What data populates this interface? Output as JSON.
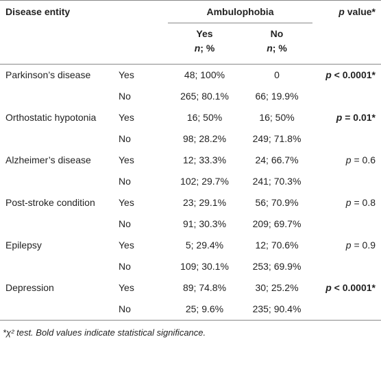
{
  "header": {
    "disease": "Disease entity",
    "group_title": "Ambulophobia",
    "p_title": {
      "var": "p",
      "rest": " value*"
    },
    "yes": "Yes",
    "no": "No",
    "count_label": {
      "var": "n",
      "rest": "; %"
    }
  },
  "table": {
    "rows": [
      {
        "disease": "Parkinson’s disease",
        "group": "Yes",
        "yes": "48; 100%",
        "no": "0",
        "p": {
          "var": "p",
          "rest": " < 0.0001*",
          "bold": true
        }
      },
      {
        "disease": null,
        "group": "No",
        "yes": "265; 80.1%",
        "no": "66; 19.9%",
        "p": null
      },
      {
        "disease": "Orthostatic hypotonia",
        "group": "Yes",
        "yes": "16; 50%",
        "no": "16; 50%",
        "p": {
          "var": "p",
          "rest": " = 0.01*",
          "bold": true
        }
      },
      {
        "disease": null,
        "group": "No",
        "yes": "98; 28.2%",
        "no": "249; 71.8%",
        "p": null
      },
      {
        "disease": "Alzheimer’s disease",
        "group": "Yes",
        "yes": "12; 33.3%",
        "no": "24; 66.7%",
        "p": {
          "var": "p",
          "rest": " = 0.6",
          "bold": false
        }
      },
      {
        "disease": null,
        "group": "No",
        "yes": "102; 29.7%",
        "no": "241; 70.3%",
        "p": null
      },
      {
        "disease": "Post-stroke condition",
        "group": "Yes",
        "yes": "23; 29.1%",
        "no": "56; 70.9%",
        "p": {
          "var": "p",
          "rest": " = 0.8",
          "bold": false
        }
      },
      {
        "disease": null,
        "group": "No",
        "yes": "91; 30.3%",
        "no": "209; 69.7%",
        "p": null
      },
      {
        "disease": "Epilepsy",
        "group": "Yes",
        "yes": "5; 29.4%",
        "no": "12; 70.6%",
        "p": {
          "var": "p",
          "rest": " = 0.9",
          "bold": false
        }
      },
      {
        "disease": null,
        "group": "No",
        "yes": "109; 30.1%",
        "no": "253; 69.9%",
        "p": null
      },
      {
        "disease": "Depression",
        "group": "Yes",
        "yes": "89; 74.8%",
        "no": "30; 25.2%",
        "p": {
          "var": "p",
          "rest": " < 0.0001*",
          "bold": true
        }
      },
      {
        "disease": null,
        "group": "No",
        "yes": "25; 9.6%",
        "no": "235; 90.4%",
        "p": null
      }
    ]
  },
  "footnote": "*χ² test. Bold values indicate statistical significance."
}
